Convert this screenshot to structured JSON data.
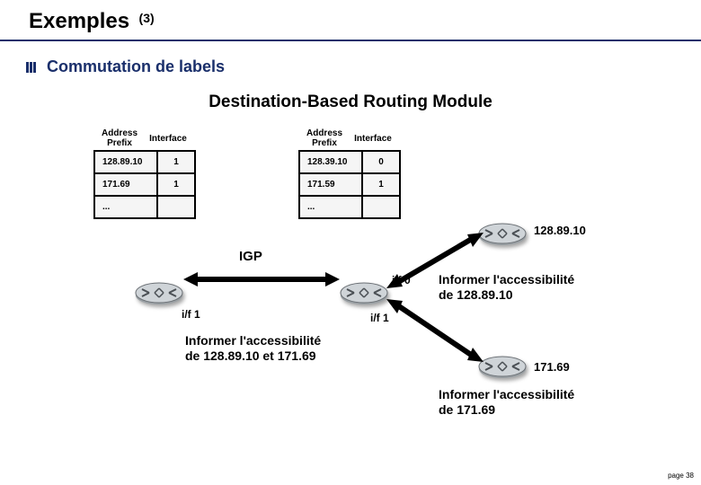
{
  "slide": {
    "title": "Exemples",
    "title_super": "(3)",
    "bullet": "Commutation de labels",
    "diagram_title": "Destination-Based Routing Module",
    "page_label": "page 38"
  },
  "colors": {
    "heading_rule": "#1a2f6b",
    "bullet_text": "#1a2f6b",
    "router_fill": "#cfd4d8",
    "router_stroke": "#6b7075",
    "arrow": "#000000",
    "table_border": "#000000",
    "table_cell_bg": "#f5f5f5"
  },
  "table_headers": {
    "col1": "Address\nPrefix",
    "col2": "Interface"
  },
  "table_left": {
    "rows": [
      {
        "prefix": "128.89.10",
        "iface": "1"
      },
      {
        "prefix": "171.69",
        "iface": "1"
      },
      {
        "prefix": "...",
        "iface": ""
      }
    ]
  },
  "table_right": {
    "rows": [
      {
        "prefix": "128.39.10",
        "iface": "0"
      },
      {
        "prefix": "171.59",
        "iface": "1"
      },
      {
        "prefix": "...",
        "iface": ""
      }
    ]
  },
  "labels": {
    "igp": "IGP",
    "if1_left": "i/f 1",
    "if0": "i/f 0",
    "if1_center": "i/f 1",
    "dest_top": "128.89.10",
    "dest_bottom": "171.69"
  },
  "captions": {
    "center": "Informer l'accessibilité\nde 128.89.10 et 171.69",
    "right_top": "Informer l'accessibilité\nde 128.89.10",
    "right_bottom": "Informer l'accessibilité\nde 171.69"
  },
  "diagram_meta": {
    "type": "network",
    "routers": 4,
    "tables": 2,
    "arrows_bidirectional": 3
  }
}
